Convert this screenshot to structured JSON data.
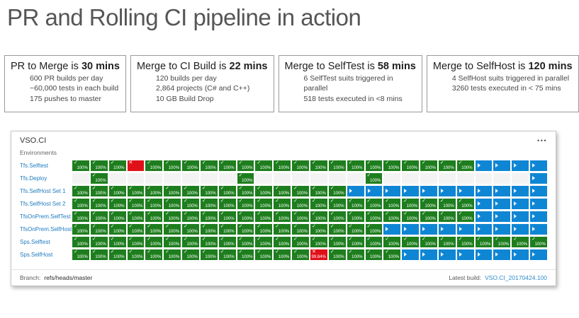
{
  "title": "PR and Rolling CI pipeline in action",
  "info_boxes": [
    {
      "title_prefix": "PR to Merge is",
      "title_bold": "30 mins",
      "lines": [
        "600 PR builds per day",
        "~60,000 tests in each build",
        "175 pushes to master"
      ]
    },
    {
      "title_prefix": "Merge to CI Build is",
      "title_bold": "22 mins",
      "lines": [
        "120 builds per day",
        "2,864 projects (C# and C++)",
        "10 GB Build Drop"
      ]
    },
    {
      "title_prefix": "Merge to SelfTest is",
      "title_bold": "58 mins",
      "lines": [
        "6 SelfTest suits triggered in parallel",
        "518 tests executed in <8 mins"
      ]
    },
    {
      "title_prefix": "Merge to SelfHost is",
      "title_bold": "120 mins",
      "lines": [
        "4 SelfHost suits triggered in parallel",
        "3260 tests executed in < 75 mins"
      ]
    }
  ],
  "dashboard": {
    "title": "VSO.CI",
    "menu_icon": "•••",
    "environments_label": "Environments",
    "columns": 26,
    "pass_label": "100%",
    "colors": {
      "pass": "#1e7e1e",
      "running": "#0f86d4",
      "fail": "#e01019",
      "empty": "#f3f3f3"
    },
    "rows": [
      {
        "label": "Tfs.Selftest",
        "cells": [
          {
            "state": "pass",
            "count": 3
          },
          {
            "state": "fail",
            "count": 1
          },
          {
            "state": "pass",
            "count": 18
          },
          {
            "state": "running",
            "count": 4
          }
        ]
      },
      {
        "label": "Tfs.Deploy",
        "cells": [
          {
            "state": "empty",
            "count": 1
          },
          {
            "state": "pass",
            "count": 1
          },
          {
            "state": "empty",
            "count": 7
          },
          {
            "state": "pass",
            "count": 1
          },
          {
            "state": "empty",
            "count": 6
          },
          {
            "state": "pass",
            "count": 1
          },
          {
            "state": "empty",
            "count": 8
          },
          {
            "state": "running",
            "count": 1
          }
        ]
      },
      {
        "label": "Tfs.SelfHost Set 1",
        "cells": [
          {
            "state": "pass",
            "count": 15
          },
          {
            "state": "running",
            "count": 11
          }
        ]
      },
      {
        "label": "Tfs.SelfHost Set 2",
        "cells": [
          {
            "state": "pass",
            "count": 22
          },
          {
            "state": "running",
            "count": 4
          }
        ]
      },
      {
        "label": "TfsOnPrem.SelfTest",
        "cells": [
          {
            "state": "pass",
            "count": 22
          },
          {
            "state": "running",
            "count": 4
          }
        ]
      },
      {
        "label": "TfsOnPrem.SelfHost",
        "cells": [
          {
            "state": "pass",
            "count": 17
          },
          {
            "state": "running",
            "count": 9
          }
        ]
      },
      {
        "label": "Sps.Selftest",
        "cells": [
          {
            "state": "pass",
            "count": 26
          }
        ]
      },
      {
        "label": "Sps.SelfHost",
        "cells": [
          {
            "state": "pass",
            "count": 13
          },
          {
            "state": "fail",
            "count": 1,
            "value": "99.84%"
          },
          {
            "state": "pass",
            "count": 4
          },
          {
            "state": "running",
            "count": 8
          }
        ]
      }
    ],
    "footer": {
      "branch_label": "Branch:",
      "branch_value": "refs/heads/master",
      "latest_build_label": "Latest build:",
      "latest_build_value": "VSO.CI_20170424.100"
    }
  }
}
